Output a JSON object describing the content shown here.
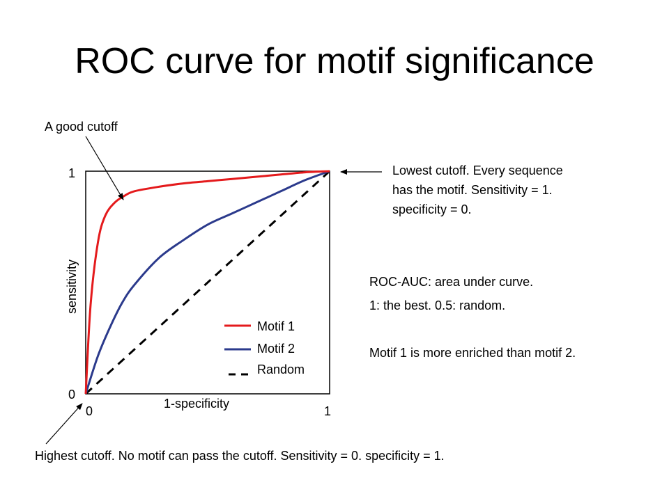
{
  "title": "ROC curve for motif significance",
  "chart_data": {
    "type": "line",
    "xlabel": "1-specificity",
    "ylabel": "sensitivity",
    "xlim": [
      0,
      1
    ],
    "ylim": [
      0,
      1
    ],
    "x_ticks": [
      "0",
      "1"
    ],
    "y_ticks": [
      "0",
      "1"
    ],
    "grid": false,
    "legend_position": "bottom-right",
    "series": [
      {
        "name": "Motif 1",
        "color": "#e41a1c",
        "x": [
          0,
          0.02,
          0.05,
          0.08,
          0.12,
          0.16,
          0.2,
          0.3,
          0.4,
          0.5,
          0.6,
          0.7,
          0.8,
          0.9,
          1.0
        ],
        "y": [
          0,
          0.4,
          0.68,
          0.8,
          0.86,
          0.89,
          0.91,
          0.93,
          0.945,
          0.955,
          0.965,
          0.975,
          0.985,
          0.995,
          1.0
        ]
      },
      {
        "name": "Motif 2",
        "color": "#2b3a8c",
        "x": [
          0,
          0.05,
          0.1,
          0.15,
          0.2,
          0.3,
          0.4,
          0.5,
          0.6,
          0.7,
          0.8,
          0.9,
          1.0
        ],
        "y": [
          0,
          0.17,
          0.3,
          0.41,
          0.49,
          0.61,
          0.69,
          0.76,
          0.81,
          0.86,
          0.91,
          0.96,
          1.0
        ]
      },
      {
        "name": "Random",
        "color": "#000000",
        "dashed": true,
        "x": [
          0,
          1
        ],
        "y": [
          0,
          1
        ]
      }
    ]
  },
  "annotations": {
    "good_cutoff": "A good cutoff",
    "lowest_cutoff": [
      "Lowest cutoff. Every sequence",
      "has the motif. Sensitivity = 1.",
      "specificity = 0."
    ],
    "highest_cutoff": "Highest cutoff. No motif can pass the cutoff. Sensitivity = 0. specificity = 1.",
    "auc_line1": "ROC-AUC: area under curve.",
    "auc_line2": "1: the best. 0.5: random.",
    "enriched": "Motif 1 is more enriched than motif 2."
  }
}
